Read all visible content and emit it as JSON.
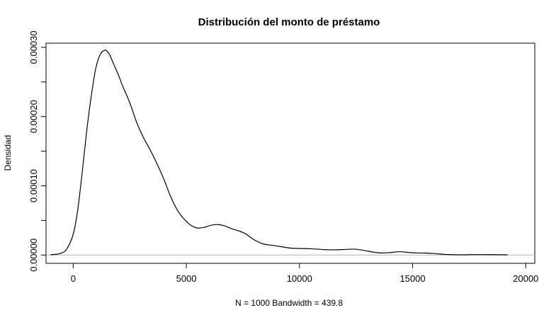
{
  "chart_data": {
    "type": "line",
    "title": "Distribución del monto de préstamo",
    "xlabel": "N = 1000   Bandwidth = 439.8",
    "ylabel": "Densidad",
    "xlim": [
      -1200,
      20400
    ],
    "ylim": [
      -1.2e-05,
      0.000306
    ],
    "xticks": [
      0,
      5000,
      10000,
      15000,
      20000
    ],
    "xtick_labels": [
      "0",
      "5000",
      "10000",
      "15000",
      "20000"
    ],
    "yticks": [
      0,
      0.0001,
      0.0002,
      0.0003
    ],
    "ytick_labels": [
      "0.00000",
      "0.00010",
      "0.00020",
      "0.00030"
    ],
    "yminor_ticks": [
      5e-05,
      0.00015,
      0.00025
    ],
    "grid": false,
    "baseline": 0,
    "series": [
      {
        "color": "#000000",
        "x": [
          -1000,
          -600,
          -300,
          0,
          200,
          400,
          600,
          800,
          1000,
          1200,
          1400,
          1500,
          1600,
          1800,
          2000,
          2200,
          2500,
          2800,
          3100,
          3400,
          3700,
          4000,
          4300,
          4600,
          4900,
          5200,
          5500,
          5800,
          6100,
          6400,
          6700,
          7000,
          7300,
          7600,
          8000,
          8400,
          8800,
          9200,
          9600,
          10000,
          10500,
          11000,
          11500,
          12000,
          12400,
          12800,
          13200,
          13600,
          14000,
          14400,
          14800,
          15200,
          15600,
          16000,
          16400,
          16800,
          17200,
          17600,
          18000,
          18400,
          18800,
          19200
        ],
        "y": [
          5e-07,
          2e-06,
          8e-06,
          3e-05,
          6.5e-05,
          0.00012,
          0.00018,
          0.00023,
          0.00027,
          0.00029,
          0.000296,
          0.000294,
          0.00029,
          0.000275,
          0.00026,
          0.000243,
          0.00022,
          0.000192,
          0.00017,
          0.000152,
          0.000132,
          0.00011,
          8.5e-05,
          6.5e-05,
          5.2e-05,
          4.3e-05,
          3.9e-05,
          4e-05,
          4.3e-05,
          4.4e-05,
          4.2e-05,
          3.8e-05,
          3.5e-05,
          3.1e-05,
          2.2e-05,
          1.6e-05,
          1.4e-05,
          1.2e-05,
          1e-05,
          9.5e-06,
          9e-06,
          8e-06,
          7.5e-06,
          8e-06,
          8.5e-06,
          7e-06,
          4.5e-06,
          3e-06,
          3.5e-06,
          4.8e-06,
          3.8e-06,
          3e-06,
          2.8e-06,
          2e-06,
          1e-06,
          5e-07,
          3e-07,
          5e-07,
          6e-07,
          5e-07,
          4e-07,
          3e-07
        ]
      }
    ]
  }
}
